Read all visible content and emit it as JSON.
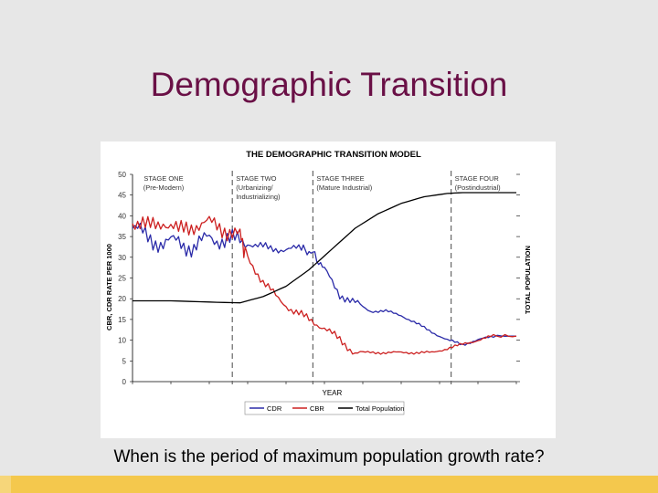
{
  "slide": {
    "title": "Demographic Transition",
    "question": "When is the period of maximum population growth rate?"
  },
  "colors": {
    "title": "#6a1046",
    "cdr": "#2a2aa8",
    "cbr": "#cc2020",
    "population": "#000000",
    "bottom_bar": "#f4c84d"
  },
  "chart_data": {
    "type": "line",
    "title": "THE DEMOGRAPHIC TRANSITION MODEL",
    "xlabel": "YEAR",
    "ylabel_left": "CBR, CDR RATE PER 1000",
    "ylabel_right": "TOTAL POPULATION",
    "xlim": [
      0,
      100
    ],
    "ylim": [
      0,
      50
    ],
    "y_ticks": [
      "0",
      "5",
      "10",
      "15",
      "20",
      "25",
      "30",
      "35",
      "40",
      "45",
      "50"
    ],
    "stages": [
      {
        "name": "STAGE ONE",
        "sub": "(Pre-Modern)",
        "start": 0,
        "end": 26
      },
      {
        "name": "STAGE TWO",
        "sub": "(Urbanizing/ Industrializing)",
        "start": 26,
        "end": 47
      },
      {
        "name": "STAGE THREE",
        "sub": "(Mature Industrial)",
        "start": 47,
        "end": 83
      },
      {
        "name": "STAGE FOUR",
        "sub": "(Postindustrial)",
        "start": 83,
        "end": 100
      }
    ],
    "legend": [
      "CDR",
      "CBR",
      "Total Population"
    ],
    "series": [
      {
        "name": "CDR",
        "x": [
          0,
          4,
          8,
          12,
          16,
          20,
          24,
          28,
          32,
          36,
          40,
          44,
          47,
          50,
          54,
          58,
          62,
          66,
          70,
          74,
          78,
          82,
          86,
          90,
          94,
          100
        ],
        "values": [
          37,
          35,
          33,
          34,
          32,
          35,
          34,
          34,
          33,
          32,
          32,
          32,
          31,
          27,
          21,
          19,
          17,
          17,
          16,
          14,
          12,
          10,
          9,
          10,
          11,
          11
        ]
      },
      {
        "name": "CBR",
        "x": [
          0,
          4,
          8,
          12,
          16,
          20,
          24,
          28,
          30,
          34,
          38,
          42,
          46,
          50,
          54,
          58,
          62,
          66,
          70,
          74,
          78,
          82,
          86,
          90,
          94,
          100
        ],
        "values": [
          39,
          37,
          39,
          36,
          38,
          38,
          37,
          35,
          30,
          24,
          20,
          17,
          15,
          13,
          10,
          7,
          7,
          7,
          7,
          7,
          7,
          8,
          9,
          10,
          11,
          11
        ]
      },
      {
        "name": "Total Population",
        "x": [
          0,
          10,
          20,
          28,
          34,
          40,
          46,
          52,
          58,
          64,
          70,
          76,
          82,
          86,
          90,
          95,
          100
        ],
        "values": [
          19.5,
          19.5,
          19.2,
          19,
          20.5,
          23,
          27,
          32,
          37,
          40.5,
          43,
          44.6,
          45.4,
          45.6,
          45.6,
          45.6,
          45.6
        ]
      }
    ]
  }
}
